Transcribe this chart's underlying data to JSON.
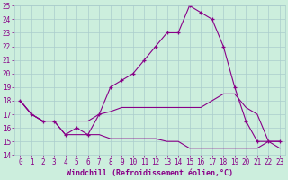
{
  "xlabel": "Windchill (Refroidissement éolien,°C)",
  "hours": [
    0,
    1,
    2,
    3,
    4,
    5,
    6,
    7,
    8,
    9,
    10,
    11,
    12,
    13,
    14,
    15,
    16,
    17,
    18,
    19,
    20,
    21,
    22,
    23
  ],
  "line1": [
    18,
    17,
    16.5,
    16.5,
    15.5,
    16,
    15.5,
    17,
    19,
    19.5,
    20,
    21,
    22,
    23,
    23,
    25,
    24.5,
    24,
    22,
    19,
    16.5,
    15,
    15,
    15
  ],
  "line2": [
    18,
    17,
    16.5,
    16.5,
    16.5,
    16.5,
    16.5,
    17,
    17.2,
    17.5,
    17.5,
    17.5,
    17.5,
    17.5,
    17.5,
    17.5,
    17.5,
    18,
    18.5,
    18.5,
    17.5,
    17,
    15,
    15
  ],
  "line3": [
    18,
    17,
    16.5,
    16.5,
    15.5,
    15.5,
    15.5,
    15.5,
    15.2,
    15.2,
    15.2,
    15.2,
    15.2,
    15,
    15,
    14.5,
    14.5,
    14.5,
    14.5,
    14.5,
    14.5,
    14.5,
    15,
    14.5
  ],
  "line_color": "#880088",
  "bg_color": "#cceedd",
  "grid_color": "#aacccc",
  "ylim": [
    14,
    25
  ],
  "xlim": [
    -0.5,
    23.5
  ],
  "yticks": [
    14,
    15,
    16,
    17,
    18,
    19,
    20,
    21,
    22,
    23,
    24,
    25
  ],
  "xticks": [
    0,
    1,
    2,
    3,
    4,
    5,
    6,
    7,
    8,
    9,
    10,
    11,
    12,
    13,
    14,
    15,
    16,
    17,
    18,
    19,
    20,
    21,
    22,
    23
  ],
  "marker": "+",
  "linewidth": 0.8,
  "markersize": 3.5,
  "tick_fontsize": 5.5,
  "xlabel_fontsize": 6.0
}
